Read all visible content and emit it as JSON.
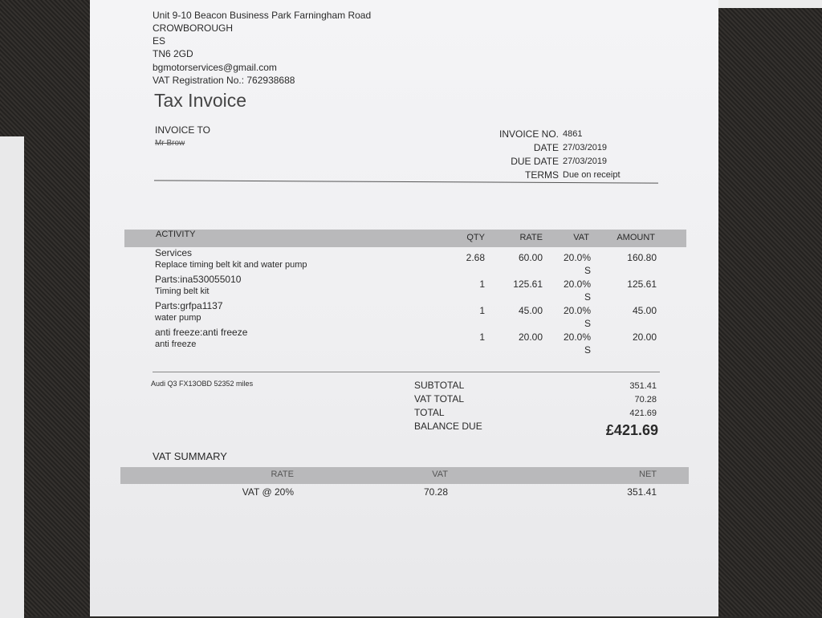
{
  "company": {
    "address": "Unit 9-10 Beacon Business Park Farningham Road",
    "town": "CROWBOROUGH",
    "county": "ES",
    "postcode": "TN6 2GD",
    "email": "bgmotorservices@gmail.com",
    "vat_reg": "VAT Registration No.: 762938688"
  },
  "title": "Tax Invoice",
  "invoice_to": {
    "label": "INVOICE TO",
    "name": "Mr Brow"
  },
  "meta": [
    {
      "label": "INVOICE NO.",
      "value": "4861"
    },
    {
      "label": "DATE",
      "value": "27/03/2019"
    },
    {
      "label": "DUE DATE",
      "value": "27/03/2019"
    },
    {
      "label": "TERMS",
      "value": "Due on receipt"
    }
  ],
  "table": {
    "headers": [
      "ACTIVITY",
      "QTY",
      "RATE",
      "VAT",
      "AMOUNT"
    ],
    "rows": [
      {
        "name": "Services",
        "desc": "Replace timing belt kit and water pump",
        "qty": "2.68",
        "rate": "60.00",
        "vat": "20.0%",
        "vat_code": "S",
        "amount": "160.80"
      },
      {
        "name": "Parts:ina530055010",
        "desc": "Timing belt kit",
        "qty": "1",
        "rate": "125.61",
        "vat": "20.0%",
        "vat_code": "S",
        "amount": "125.61"
      },
      {
        "name": "Parts:grfpa1137",
        "desc": "water pump",
        "qty": "1",
        "rate": "45.00",
        "vat": "20.0%",
        "vat_code": "S",
        "amount": "45.00"
      },
      {
        "name": "anti freeze:anti freeze",
        "desc": "anti freeze",
        "qty": "1",
        "rate": "20.00",
        "vat": "20.0%",
        "vat_code": "S",
        "amount": "20.00"
      }
    ]
  },
  "note": "Audi Q3 FX13OBD 52352 miles",
  "totals": [
    {
      "label": "SUBTOTAL",
      "value": "351.41"
    },
    {
      "label": "VAT TOTAL",
      "value": "70.28"
    },
    {
      "label": "TOTAL",
      "value": "421.69"
    },
    {
      "label": "BALANCE DUE",
      "value": "£421.69"
    }
  ],
  "vat_summary": {
    "title": "VAT SUMMARY",
    "headers": [
      "RATE",
      "VAT",
      "NET"
    ],
    "row": [
      "VAT @ 20%",
      "70.28",
      "351.41"
    ]
  }
}
